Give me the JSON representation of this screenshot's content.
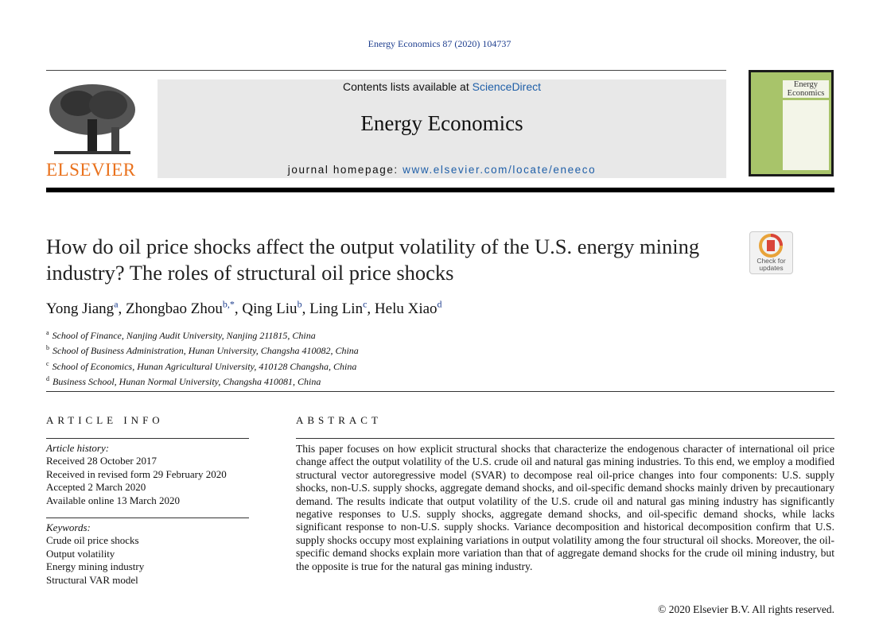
{
  "journal_ref": "Energy Economics 87 (2020) 104737",
  "header": {
    "contents_prefix": "Contents lists available at",
    "contents_link": "ScienceDirect",
    "journal_name": "Energy Economics",
    "homepage_prefix": "journal homepage:",
    "homepage_url": "www.elsevier.com/locate/eneeco",
    "publisher": "ELSEVIER",
    "cover_title": "Energy Economics"
  },
  "check_updates": "Check for updates",
  "title": "How do oil price shocks affect the output volatility of the U.S. energy mining industry? The roles of structural oil price shocks",
  "authors": [
    {
      "name": "Yong Jiang",
      "sup": "a"
    },
    {
      "name": "Zhongbao Zhou",
      "sup": "b,*"
    },
    {
      "name": "Qing Liu",
      "sup": "b"
    },
    {
      "name": "Ling Lin",
      "sup": "c"
    },
    {
      "name": "Helu Xiao",
      "sup": "d"
    }
  ],
  "affiliations": [
    {
      "sup": "a",
      "text": "School of Finance, Nanjing Audit University, Nanjing 211815, China"
    },
    {
      "sup": "b",
      "text": "School of Business Administration, Hunan University, Changsha 410082, China"
    },
    {
      "sup": "c",
      "text": "School of Economics, Hunan Agricultural University, 410128 Changsha, China"
    },
    {
      "sup": "d",
      "text": "Business School, Hunan Normal University, Changsha 410081, China"
    }
  ],
  "article_info": {
    "heading": "ARTICLE INFO",
    "history_label": "Article history:",
    "history": [
      "Received 28 October 2017",
      "Received in revised form 29 February 2020",
      "Accepted 2 March 2020",
      "Available online 13 March 2020"
    ],
    "keywords_label": "Keywords:",
    "keywords": [
      "Crude oil price shocks",
      "Output volatility",
      "Energy mining industry",
      "Structural VAR model"
    ]
  },
  "abstract": {
    "heading": "ABSTRACT",
    "text": "This paper focuses on how explicit structural shocks that characterize the endogenous character of international oil price change affect the output volatility of the U.S. crude oil and natural gas mining industries. To this end, we employ a modified structural vector autoregressive model (SVAR) to decompose real oil-price changes into four components: U.S. supply shocks, non-U.S. supply shocks, aggregate demand shocks, and oil-specific demand shocks mainly driven by precautionary demand. The results indicate that output volatility of the U.S. crude oil and natural gas mining industry has significantly negative responses to U.S. supply shocks, aggregate demand shocks, and oil-specific demand shocks, while lacks significant response to non-U.S. supply shocks. Variance decomposition and historical decomposition confirm that U.S. supply shocks occupy most explaining variations in output volatility among the four structural oil shocks. Moreover, the oil-specific demand shocks explain more variation than that of aggregate demand shocks for the crude oil mining industry, but the opposite is true for the natural gas mining industry.",
    "copyright": "© 2020 Elsevier B.V. All rights reserved."
  }
}
